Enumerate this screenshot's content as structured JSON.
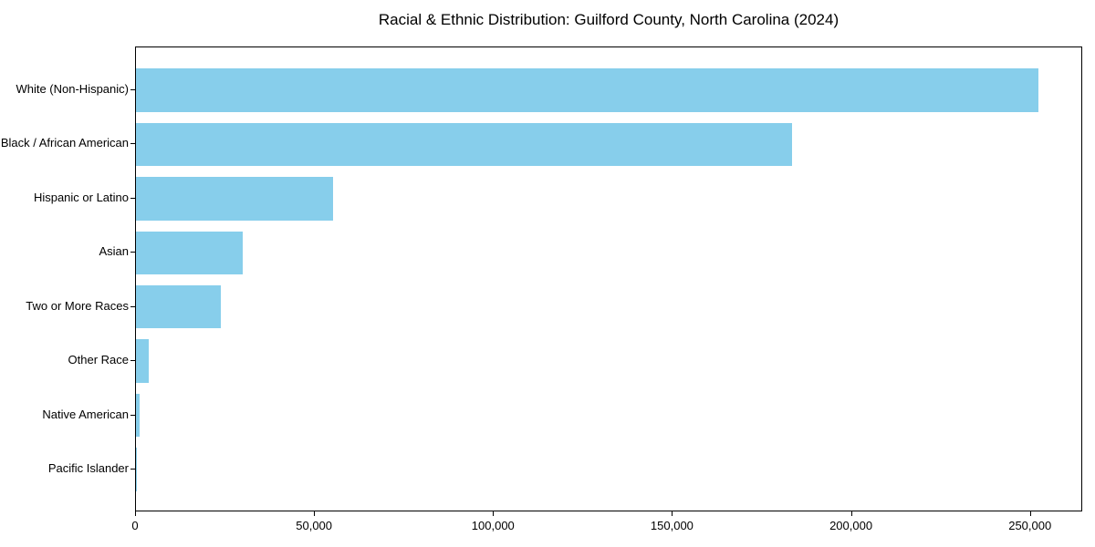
{
  "chart_data": {
    "type": "bar",
    "orientation": "horizontal",
    "title": "Racial & Ethnic Distribution: Guilford County, North Carolina (2024)",
    "categories": [
      "White (Non-Hispanic)",
      "Black / African American",
      "Hispanic or Latino",
      "Asian",
      "Two or More Races",
      "Other Race",
      "Native American",
      "Pacific Islander"
    ],
    "values": [
      252000,
      183200,
      55100,
      29700,
      23800,
      3600,
      1000,
      300
    ],
    "title_note": "",
    "xlabel": "",
    "ylabel": "",
    "xlim": [
      0,
      264600
    ],
    "x_tick_values": [
      0,
      50000,
      100000,
      150000,
      200000,
      250000
    ],
    "x_tick_labels": [
      "0",
      "50,000",
      "100,000",
      "150,000",
      "200,000",
      "250,000"
    ],
    "bar_color": "#87CEEB",
    "axis_color": "#000000",
    "background_color": "#FFFFFF",
    "grid": false,
    "legend": "none"
  }
}
